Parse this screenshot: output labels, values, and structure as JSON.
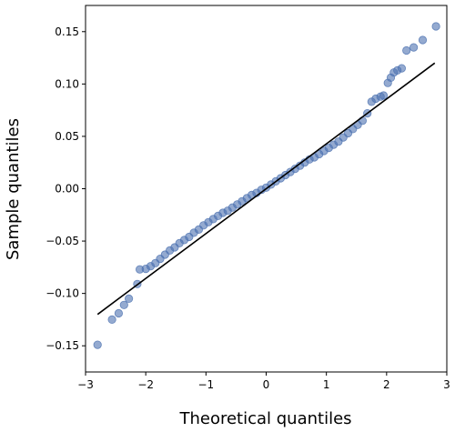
{
  "chart_data": {
    "type": "scatter",
    "title": "",
    "xlabel": "Theoretical quantiles",
    "ylabel": "Sample quantiles",
    "xlim": [
      -3,
      3
    ],
    "ylim": [
      -0.175,
      0.175
    ],
    "xticks": [
      -3,
      -2,
      -1,
      0,
      1,
      2,
      3
    ],
    "xtick_labels": [
      "−3",
      "−2",
      "−1",
      "0",
      "1",
      "2",
      "3"
    ],
    "yticks": [
      -0.15,
      -0.1,
      -0.05,
      0.0,
      0.05,
      0.1,
      0.15
    ],
    "ytick_labels": [
      "−0.15",
      "−0.10",
      "−0.05",
      "0.00",
      "0.05",
      "0.10",
      "0.15"
    ],
    "grid": false,
    "legend": "none",
    "colors": {
      "points": "#4c72b0",
      "reference_line": "#000000"
    },
    "reference_line": {
      "x": [
        -2.8,
        2.8
      ],
      "y": [
        -0.12,
        0.12
      ]
    },
    "points": [
      [
        -2.8,
        -0.149
      ],
      [
        -2.56,
        -0.125
      ],
      [
        -2.45,
        -0.119
      ],
      [
        -2.36,
        -0.111
      ],
      [
        -2.28,
        -0.105
      ],
      [
        -2.14,
        -0.091
      ],
      [
        -2.1,
        -0.077
      ],
      [
        -2.0,
        -0.0765
      ],
      [
        -1.92,
        -0.074
      ],
      [
        -1.84,
        -0.071
      ],
      [
        -1.76,
        -0.067
      ],
      [
        -1.68,
        -0.063
      ],
      [
        -1.6,
        -0.059
      ],
      [
        -1.52,
        -0.056
      ],
      [
        -1.44,
        -0.052
      ],
      [
        -1.36,
        -0.049
      ],
      [
        -1.28,
        -0.046
      ],
      [
        -1.2,
        -0.042
      ],
      [
        -1.12,
        -0.039
      ],
      [
        -1.04,
        -0.035
      ],
      [
        -0.96,
        -0.032
      ],
      [
        -0.88,
        -0.029
      ],
      [
        -0.8,
        -0.026
      ],
      [
        -0.72,
        -0.023
      ],
      [
        -0.64,
        -0.021
      ],
      [
        -0.56,
        -0.018
      ],
      [
        -0.48,
        -0.015
      ],
      [
        -0.4,
        -0.012
      ],
      [
        -0.32,
        -0.009
      ],
      [
        -0.24,
        -0.006
      ],
      [
        -0.16,
        -0.004
      ],
      [
        -0.08,
        -0.001
      ],
      [
        0.0,
        0.001
      ],
      [
        0.08,
        0.004
      ],
      [
        0.16,
        0.007
      ],
      [
        0.24,
        0.01
      ],
      [
        0.32,
        0.013
      ],
      [
        0.4,
        0.016
      ],
      [
        0.48,
        0.019
      ],
      [
        0.56,
        0.022
      ],
      [
        0.64,
        0.025
      ],
      [
        0.72,
        0.028
      ],
      [
        0.8,
        0.03
      ],
      [
        0.88,
        0.033
      ],
      [
        0.96,
        0.036
      ],
      [
        1.04,
        0.039
      ],
      [
        1.12,
        0.042
      ],
      [
        1.2,
        0.045
      ],
      [
        1.28,
        0.049
      ],
      [
        1.36,
        0.053
      ],
      [
        1.44,
        0.057
      ],
      [
        1.52,
        0.061
      ],
      [
        1.6,
        0.065
      ],
      [
        1.68,
        0.072
      ],
      [
        1.75,
        0.083
      ],
      [
        1.82,
        0.086
      ],
      [
        1.9,
        0.088
      ],
      [
        1.95,
        0.089
      ],
      [
        2.02,
        0.101
      ],
      [
        2.07,
        0.106
      ],
      [
        2.12,
        0.111
      ],
      [
        2.18,
        0.113
      ],
      [
        2.25,
        0.115
      ],
      [
        2.33,
        0.132
      ],
      [
        2.45,
        0.135
      ],
      [
        2.6,
        0.142
      ],
      [
        2.82,
        0.155
      ]
    ]
  }
}
